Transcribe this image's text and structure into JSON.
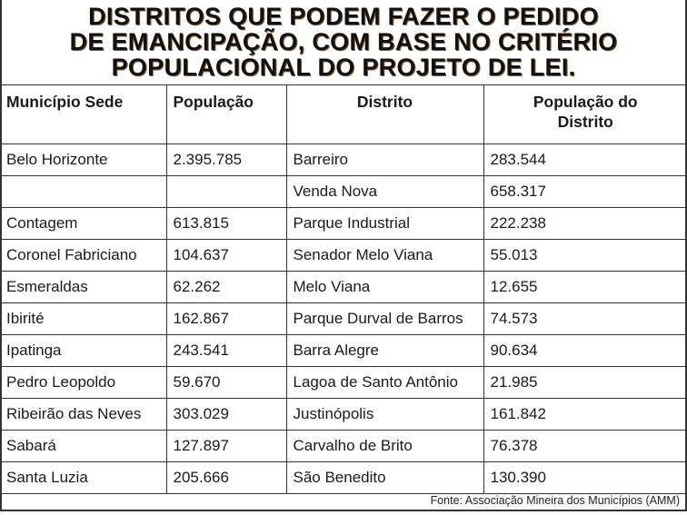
{
  "title": [
    "DISTRITOS QUE PODEM FAZER O PEDIDO",
    "DE EMANCIPAÇÃO, COM BASE NO CRITÉRIO",
    "POPULACIONAL DO PROJETO DE LEI."
  ],
  "headers": [
    "Município Sede",
    "População",
    "Distrito",
    "População do Distrito"
  ],
  "rows": [
    [
      "Belo Horizonte",
      "2.395.785",
      "Barreiro",
      "283.544"
    ],
    [
      "",
      "",
      "Venda Nova",
      "658.317"
    ],
    [
      "Contagem",
      "613.815",
      "Parque Industrial",
      "222.238"
    ],
    [
      "Coronel Fabriciano",
      "104.637",
      "Senador Melo Viana",
      "55.013"
    ],
    [
      "Esmeraldas",
      "62.262",
      "Melo Viana",
      "12.655"
    ],
    [
      "Ibirité",
      "162.867",
      "Parque Durval de Barros",
      "74.573"
    ],
    [
      "Ipatinga",
      "243.541",
      "Barra Alegre",
      "90.634"
    ],
    [
      "Pedro Leopoldo",
      "59.670",
      "Lagoa de Santo Antônio",
      "21.985"
    ],
    [
      "Ribeirão das Neves",
      "303.029",
      "Justinópolis",
      "161.842"
    ],
    [
      "Sabará",
      "127.897",
      "Carvalho de Brito",
      "76.378"
    ],
    [
      "Santa Luzia",
      "205.666",
      "São Benedito",
      "130.390"
    ]
  ],
  "source": "Fonte: Associação Mineira dos Municípios (AMM)"
}
